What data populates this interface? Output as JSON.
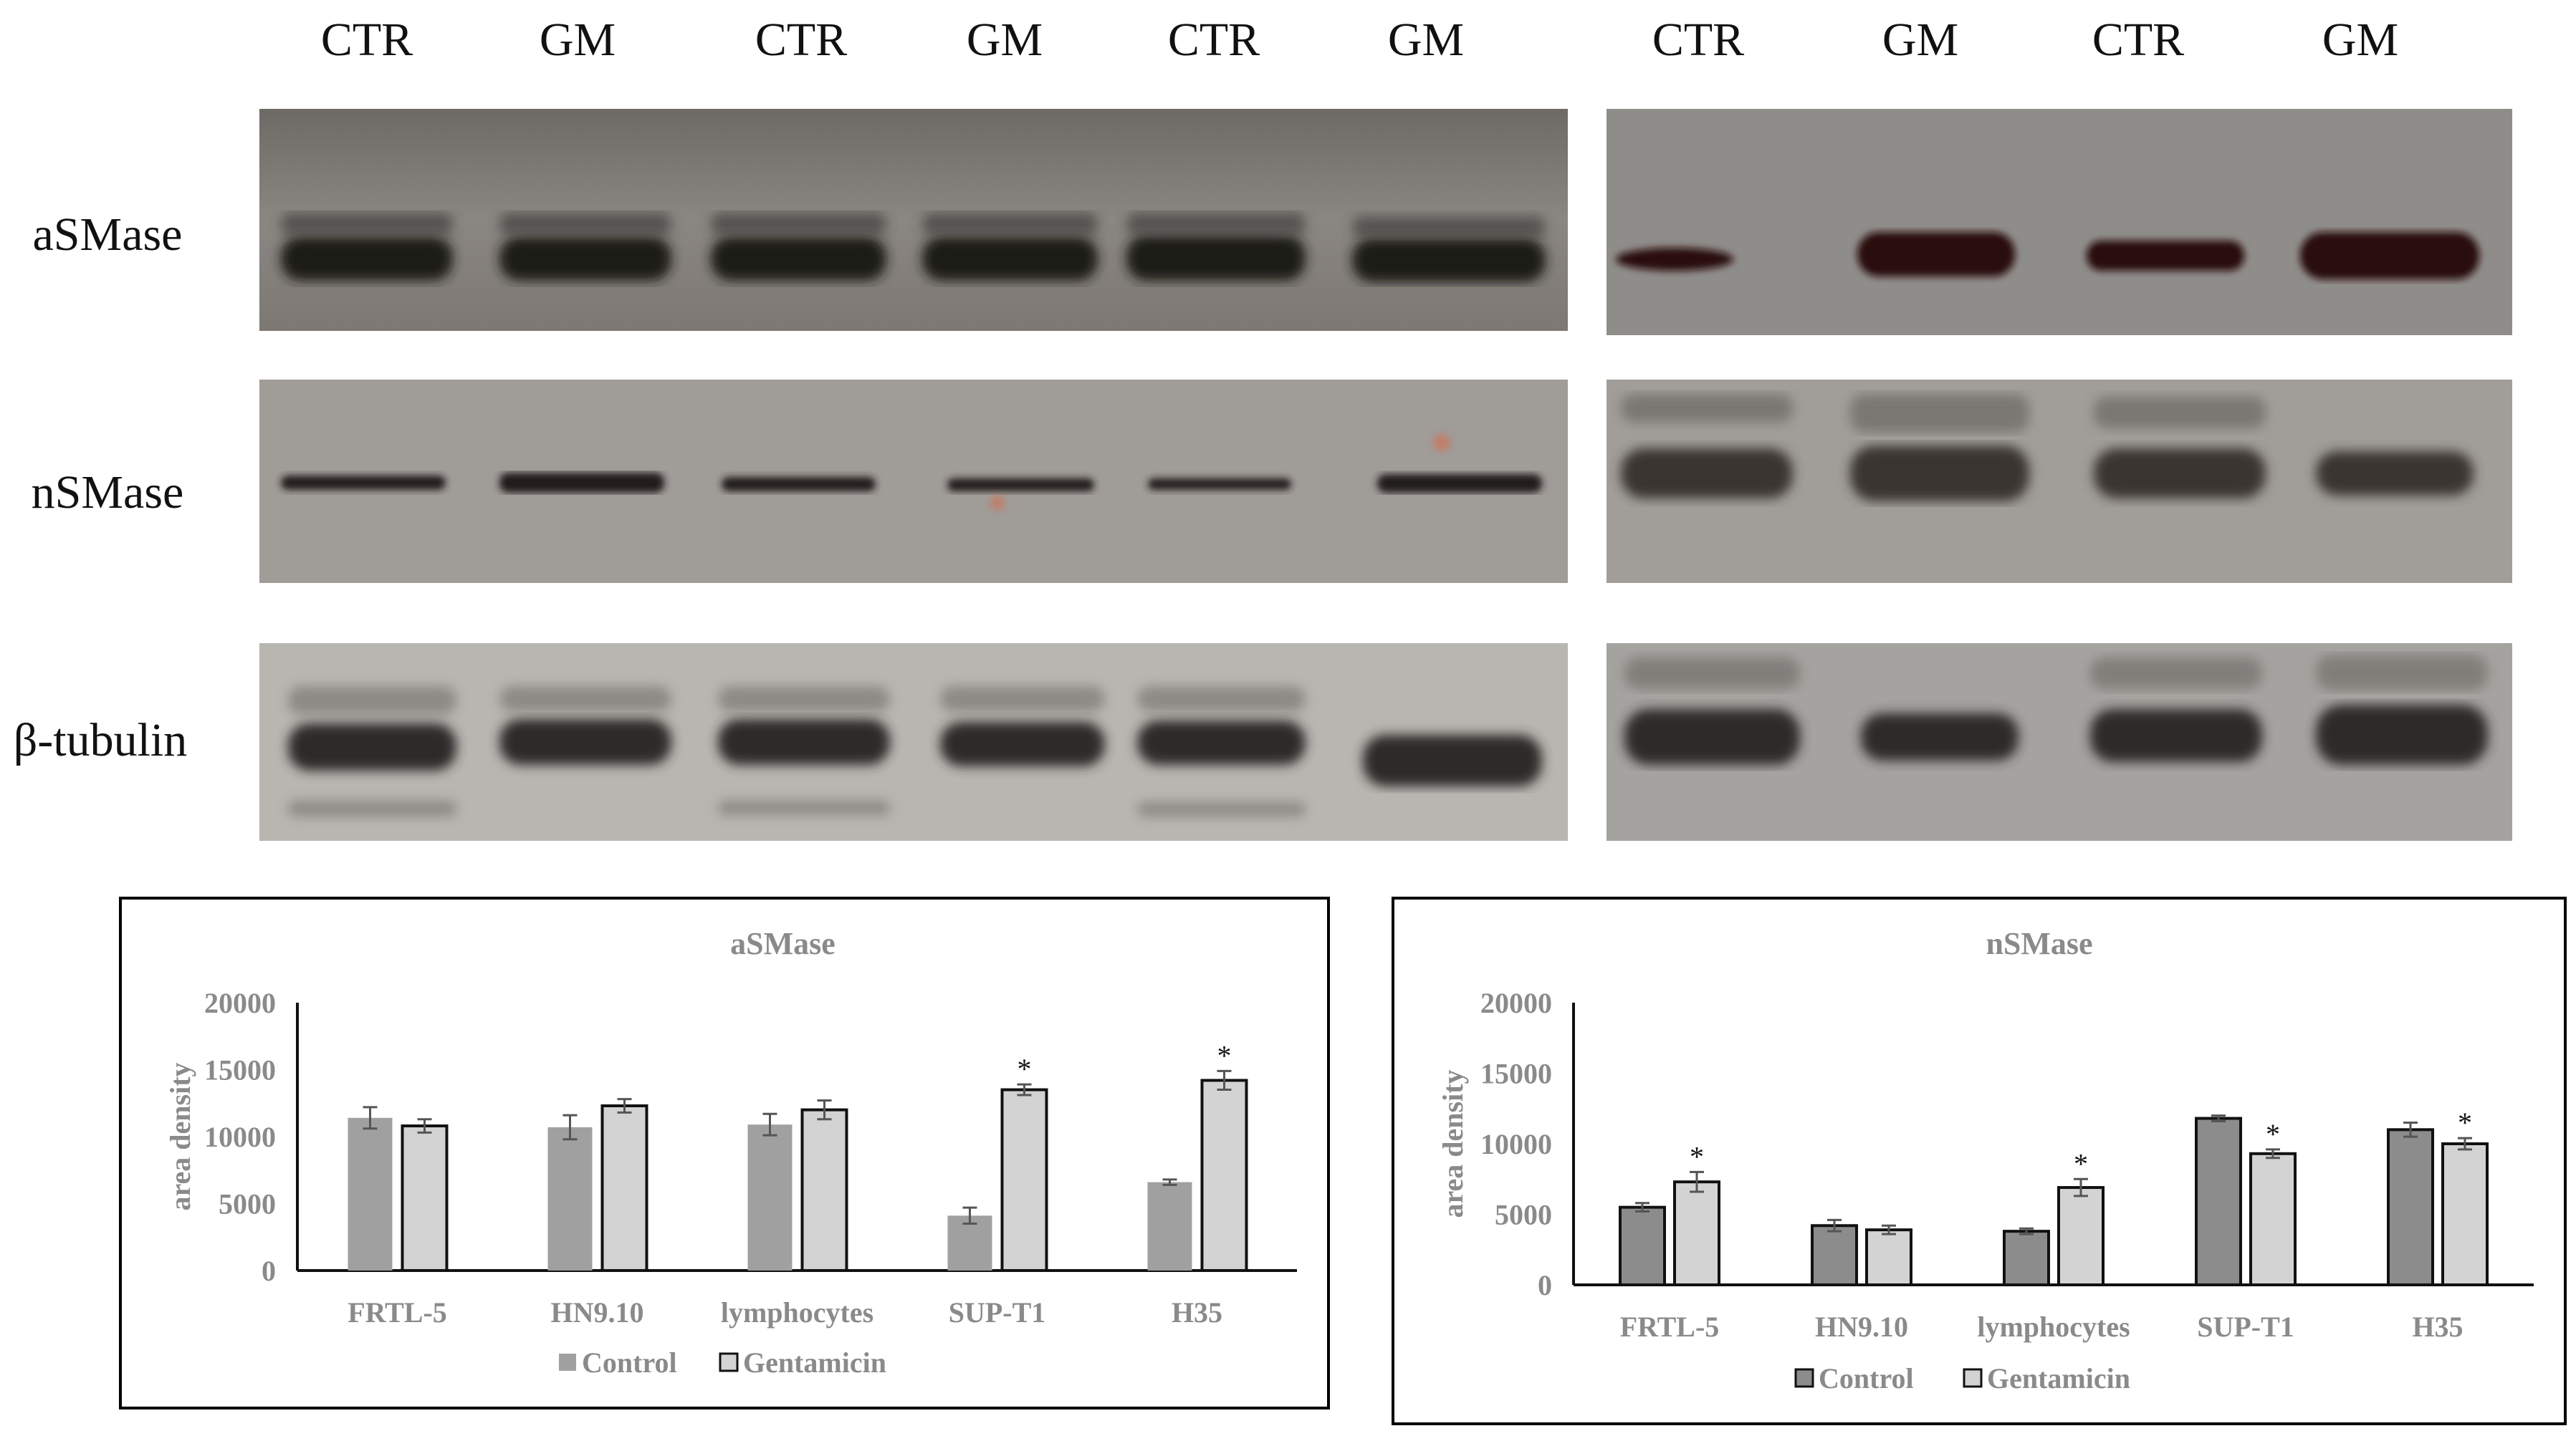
{
  "blot_panel": {
    "lane_labels": [
      "CTR",
      "GM",
      "CTR",
      "GM",
      "CTR",
      "GM",
      "CTR",
      "GM",
      "CTR",
      "GM"
    ],
    "row_labels": [
      "aSMase",
      "nSMase",
      "β-tubulin"
    ]
  },
  "chart_data": [
    {
      "type": "bar",
      "title": "aSMase",
      "xlabel": "",
      "ylabel": "area density",
      "ylim": [
        0,
        20000
      ],
      "yticks": [
        0,
        5000,
        10000,
        15000,
        20000
      ],
      "categories": [
        "FRTL-5",
        "HN9.10",
        "lymphocytes",
        "SUP-T1",
        "H35"
      ],
      "series": [
        {
          "name": "Control",
          "color": "#a0a0a0",
          "values": [
            11400,
            10700,
            10900,
            4100,
            6600
          ],
          "errors": [
            800,
            900,
            800,
            600,
            200
          ]
        },
        {
          "name": "Gentamicin",
          "color": "#d3d3d3",
          "values": [
            10800,
            12300,
            12000,
            13500,
            14200
          ],
          "errors": [
            500,
            500,
            700,
            400,
            700
          ]
        }
      ],
      "significance": [
        {
          "category": "SUP-T1",
          "series": "Gentamicin",
          "label": "*"
        },
        {
          "category": "H35",
          "series": "Gentamicin",
          "label": "*"
        }
      ],
      "legend": "bottom",
      "grid": false
    },
    {
      "type": "bar",
      "title": "nSMase",
      "xlabel": "",
      "ylabel": "area density",
      "ylim": [
        0,
        20000
      ],
      "yticks": [
        0,
        5000,
        10000,
        15000,
        20000
      ],
      "categories": [
        "FRTL-5",
        "HN9.10",
        "lymphocytes",
        "SUP-T1",
        "H35"
      ],
      "series": [
        {
          "name": "Control",
          "color": "#8c8c8c",
          "values": [
            5500,
            4200,
            3800,
            11800,
            11000
          ],
          "errors": [
            300,
            400,
            200,
            200,
            500
          ]
        },
        {
          "name": "Gentamicin",
          "color": "#d3d3d3",
          "values": [
            7300,
            3900,
            6900,
            9300,
            10000
          ],
          "errors": [
            700,
            300,
            600,
            300,
            400
          ]
        }
      ],
      "significance": [
        {
          "category": "FRTL-5",
          "series": "Gentamicin",
          "label": "*"
        },
        {
          "category": "lymphocytes",
          "series": "Gentamicin",
          "label": "*"
        },
        {
          "category": "SUP-T1",
          "series": "Gentamicin",
          "label": "*"
        },
        {
          "category": "H35",
          "series": "Gentamicin",
          "label": "*"
        }
      ],
      "legend": "bottom",
      "grid": false
    }
  ]
}
